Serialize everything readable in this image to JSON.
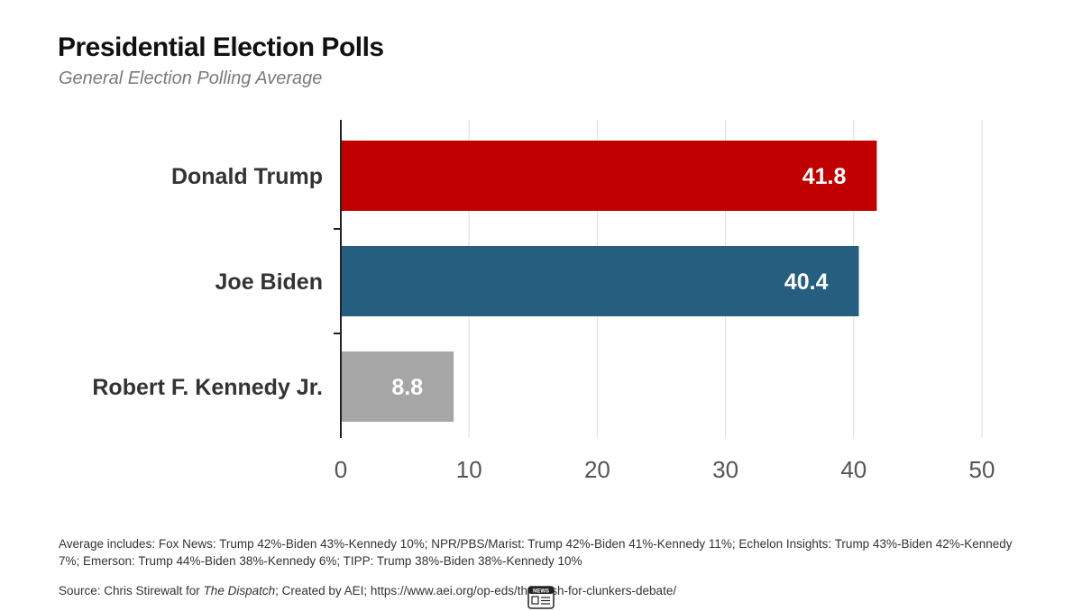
{
  "chart_data": {
    "type": "bar",
    "orientation": "horizontal",
    "title": "Presidential Election Polls",
    "subtitle": "General Election Polling Average",
    "categories": [
      "Donald Trump",
      "Joe Biden",
      "Robert F. Kennedy Jr."
    ],
    "values": [
      41.8,
      40.4,
      8.8
    ],
    "value_labels": [
      "41.8",
      "40.4",
      "8.8"
    ],
    "colors": [
      "#c00000",
      "#255e7e",
      "#a6a6a6"
    ],
    "xlim": [
      0,
      50
    ],
    "ticks": [
      0,
      10,
      20,
      30,
      40,
      50
    ],
    "tick_labels": [
      "0",
      "10",
      "20",
      "30",
      "40",
      "50"
    ],
    "grid": true,
    "xlabel": "",
    "ylabel": ""
  },
  "notes": {
    "average_includes": "Average includes: Fox News: Trump 42%-Biden 43%-Kennedy 10%; NPR/PBS/Marist: Trump 42%-Biden 41%-Kennedy 11%; Echelon Insights: Trump 43%-Biden 42%-Kennedy 7%; Emerson: Trump 44%-Biden 38%-Kennedy 6%; TIPP: Trump 38%-Biden 38%-Kennedy 10%",
    "source_prefix": "Source: Chris Stirewalt for ",
    "source_publication": "The Dispatch",
    "source_suffix": "; Created by AEI; https://www.aei.org/op-eds/the-cash-for-clunkers-debate/"
  },
  "watermark": {
    "icon": "news-icon",
    "label": "NEWS"
  }
}
